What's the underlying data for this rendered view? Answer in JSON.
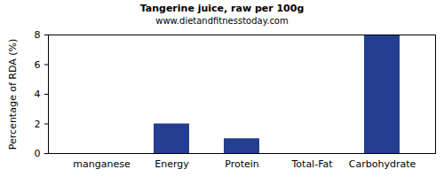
{
  "chart_data": {
    "type": "bar",
    "title": "Tangerine juice, raw per 100g",
    "subtitle": "www.dietandfitnesstoday.com",
    "y_label": "Percentage of RDA (%)",
    "categories": [
      "manganese",
      "Energy",
      "Protein",
      "Total-Fat",
      "Carbohydrate"
    ],
    "values": [
      0,
      2,
      1,
      0,
      8
    ],
    "color": "#243f8f",
    "ylim": [
      0,
      8
    ],
    "yticks": [
      0,
      2,
      4,
      6,
      8
    ],
    "grid": false
  }
}
